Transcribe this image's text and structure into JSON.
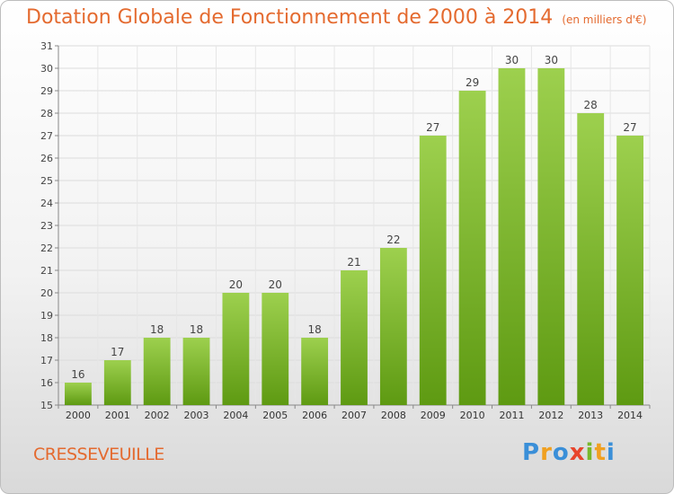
{
  "chart_data": {
    "type": "bar",
    "title": "Dotation Globale de Fonctionnement de 2000 à 2014",
    "subtitle": "(en milliers d'€)",
    "categories": [
      "2000",
      "2001",
      "2002",
      "2003",
      "2004",
      "2005",
      "2006",
      "2007",
      "2008",
      "2009",
      "2010",
      "2011",
      "2012",
      "2013",
      "2014"
    ],
    "values": [
      16,
      17,
      18,
      18,
      20,
      20,
      18,
      21,
      22,
      27,
      29,
      30,
      30,
      28,
      27
    ],
    "ylim": [
      15,
      31
    ],
    "yticks": [
      15,
      16,
      17,
      18,
      19,
      20,
      21,
      22,
      23,
      24,
      25,
      26,
      27,
      28,
      29,
      30,
      31
    ],
    "grid": true,
    "bar_color_top": "#9dd04e",
    "bar_color_bottom": "#5e9a12"
  },
  "footer": {
    "commune": "CRESSEVEUILLE",
    "logo_letters": [
      "P",
      "r",
      "o",
      "x",
      "i",
      "t",
      "i"
    ],
    "logo_colors": [
      "#3a8fd8",
      "#f0a020",
      "#3a8fd8",
      "#e8452c",
      "#78b82a",
      "#f0a020",
      "#3a8fd8"
    ]
  }
}
